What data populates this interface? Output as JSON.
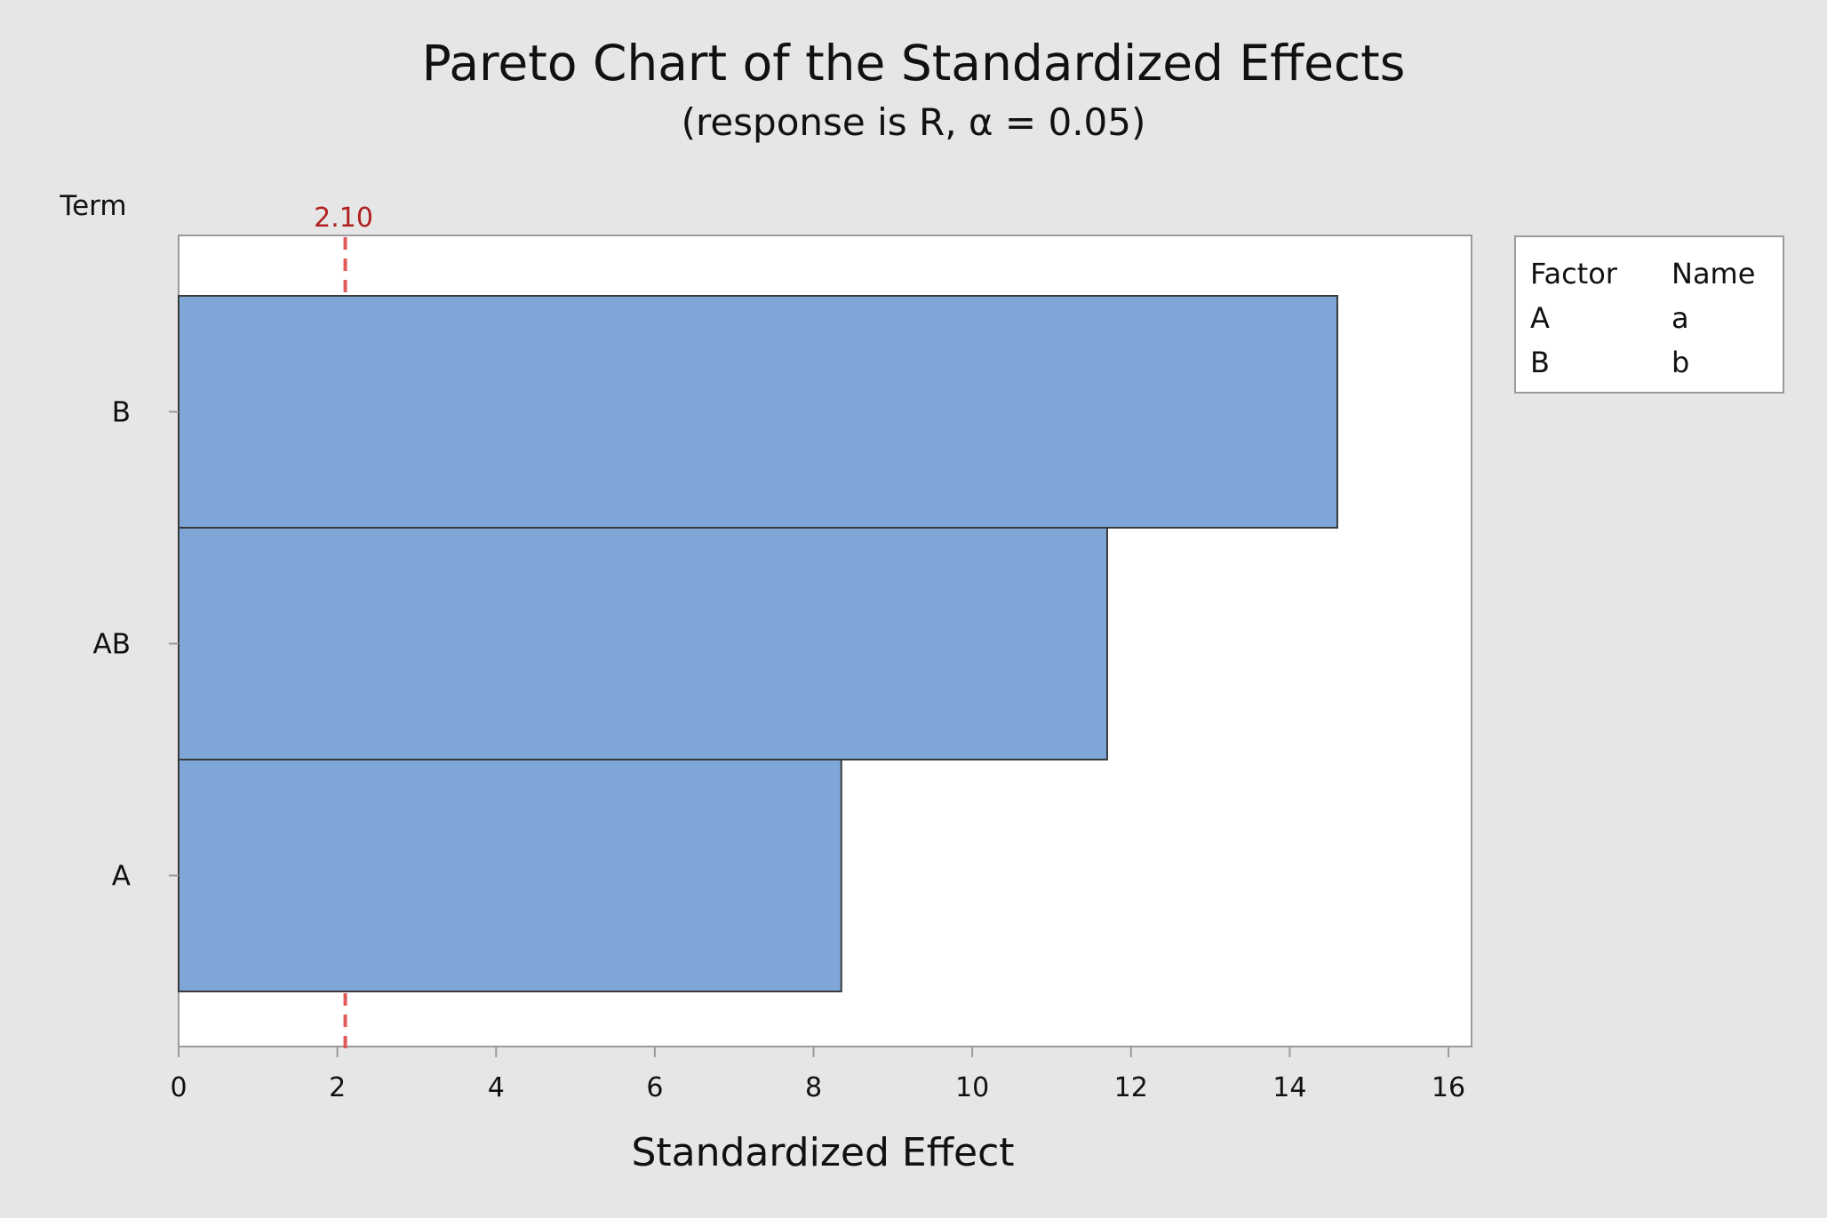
{
  "chart_data": {
    "type": "bar",
    "orientation": "horizontal",
    "title": "Pareto Chart of the Standardized Effects",
    "subtitle": "(response is R, α = 0.05)",
    "ylabel": "Term",
    "xlabel": "Standardized Effect",
    "categories": [
      "B",
      "AB",
      "A"
    ],
    "values": [
      14.6,
      11.7,
      8.35
    ],
    "xlim": [
      0,
      16
    ],
    "xticks": [
      0,
      2,
      4,
      6,
      8,
      10,
      12,
      14,
      16
    ],
    "reference_line": {
      "value": 2.1,
      "label": "2.10"
    },
    "legend": {
      "headers": [
        "Factor",
        "Name"
      ],
      "rows": [
        [
          "A",
          "a"
        ],
        [
          "B",
          "b"
        ]
      ]
    },
    "colors": {
      "bar": "#7ea7d8",
      "reference": "#e05a5a",
      "reference_label": "#b02020"
    }
  }
}
